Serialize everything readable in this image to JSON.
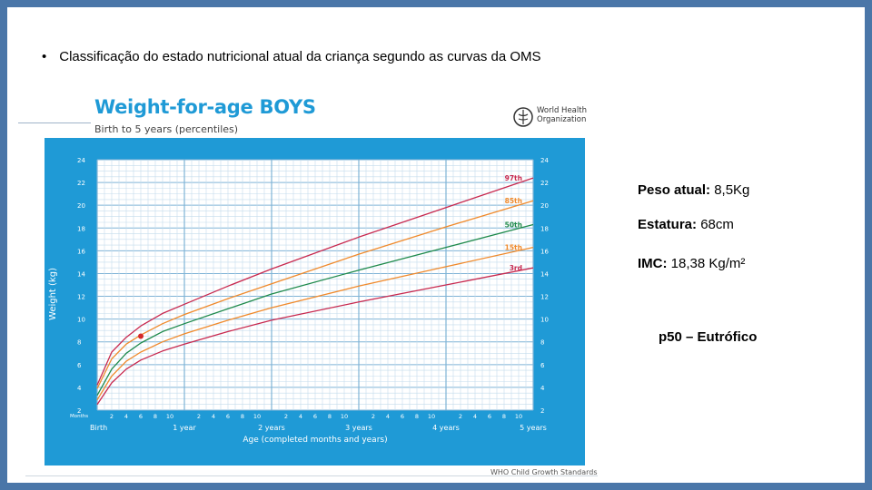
{
  "slide": {
    "bullet": "•",
    "heading": "Classificação do estado nutricional atual da criança segundo as curvas da OMS"
  },
  "figure": {
    "title": "Weight-for-age BOYS",
    "subtitle": "Birth to 5 years (percentiles)",
    "logo_text_line1": "World Health",
    "logo_text_line2": "Organization",
    "footer": "WHO Child Growth Standards",
    "colors": {
      "background": "#1f9ad6",
      "grid_minor": "#8ccbec",
      "grid_major": "#ffffff",
      "p97": "#c8294f",
      "p85": "#f08a2c",
      "p50": "#1f8a4c",
      "p15": "#f08a2c",
      "p3": "#c8294f",
      "point": "#d42a2a"
    }
  },
  "chart_data": {
    "type": "line",
    "ylabel": "Weight (kg)",
    "xlabel": "Age (completed months and years)",
    "ylim": [
      2,
      24
    ],
    "xlim": [
      0,
      60
    ],
    "y_ticks": [
      "2",
      "4",
      "6",
      "8",
      "10",
      "12",
      "14",
      "16",
      "18",
      "20",
      "22",
      "24"
    ],
    "x_row_label": "Months",
    "x_month_ticks": [
      "2",
      "4",
      "6",
      "8",
      "10",
      "2",
      "4",
      "6",
      "8",
      "10",
      "2",
      "4",
      "6",
      "8",
      "10",
      "2",
      "4",
      "6",
      "8",
      "10",
      "2",
      "4",
      "6",
      "8",
      "10"
    ],
    "x_year_ticks": [
      "Birth",
      "1 year",
      "2 years",
      "3 years",
      "4 years",
      "5 years"
    ],
    "series": [
      {
        "name": "97th",
        "color": "#c8294f",
        "x": [
          0,
          2,
          4,
          6,
          9,
          12,
          18,
          24,
          36,
          48,
          60
        ],
        "y": [
          4.2,
          7.1,
          8.4,
          9.4,
          10.5,
          11.3,
          12.9,
          14.4,
          17.2,
          19.8,
          22.4
        ]
      },
      {
        "name": "85th",
        "color": "#f08a2c",
        "x": [
          0,
          2,
          4,
          6,
          9,
          12,
          18,
          24,
          36,
          48,
          60
        ],
        "y": [
          3.9,
          6.5,
          7.8,
          8.6,
          9.6,
          10.4,
          11.8,
          13.1,
          15.7,
          18.1,
          20.4
        ]
      },
      {
        "name": "50th",
        "color": "#1f8a4c",
        "x": [
          0,
          2,
          4,
          6,
          9,
          12,
          18,
          24,
          36,
          48,
          60
        ],
        "y": [
          3.3,
          5.6,
          7.0,
          7.9,
          8.9,
          9.6,
          10.9,
          12.2,
          14.3,
          16.3,
          18.3
        ]
      },
      {
        "name": "15th",
        "color": "#f08a2c",
        "x": [
          0,
          2,
          4,
          6,
          9,
          12,
          18,
          24,
          36,
          48,
          60
        ],
        "y": [
          2.9,
          5.0,
          6.3,
          7.1,
          8.0,
          8.7,
          9.9,
          11.0,
          12.9,
          14.6,
          16.3
        ]
      },
      {
        "name": "3rd",
        "color": "#c8294f",
        "x": [
          0,
          2,
          4,
          6,
          9,
          12,
          18,
          24,
          36,
          48,
          60
        ],
        "y": [
          2.5,
          4.4,
          5.6,
          6.4,
          7.2,
          7.8,
          8.9,
          9.9,
          11.5,
          13.0,
          14.5
        ]
      }
    ],
    "points": [
      {
        "x": 6,
        "y": 8.5,
        "color": "#d42a2a"
      }
    ]
  },
  "measurements": {
    "peso_label": "Peso atual:",
    "peso_value": "8,5Kg",
    "estatura_label": "Estatura:",
    "estatura_value": "68cm",
    "imc_label": "IMC:",
    "imc_value": "18,38 Kg/m²",
    "classification": "p50 – Eutrófico"
  }
}
